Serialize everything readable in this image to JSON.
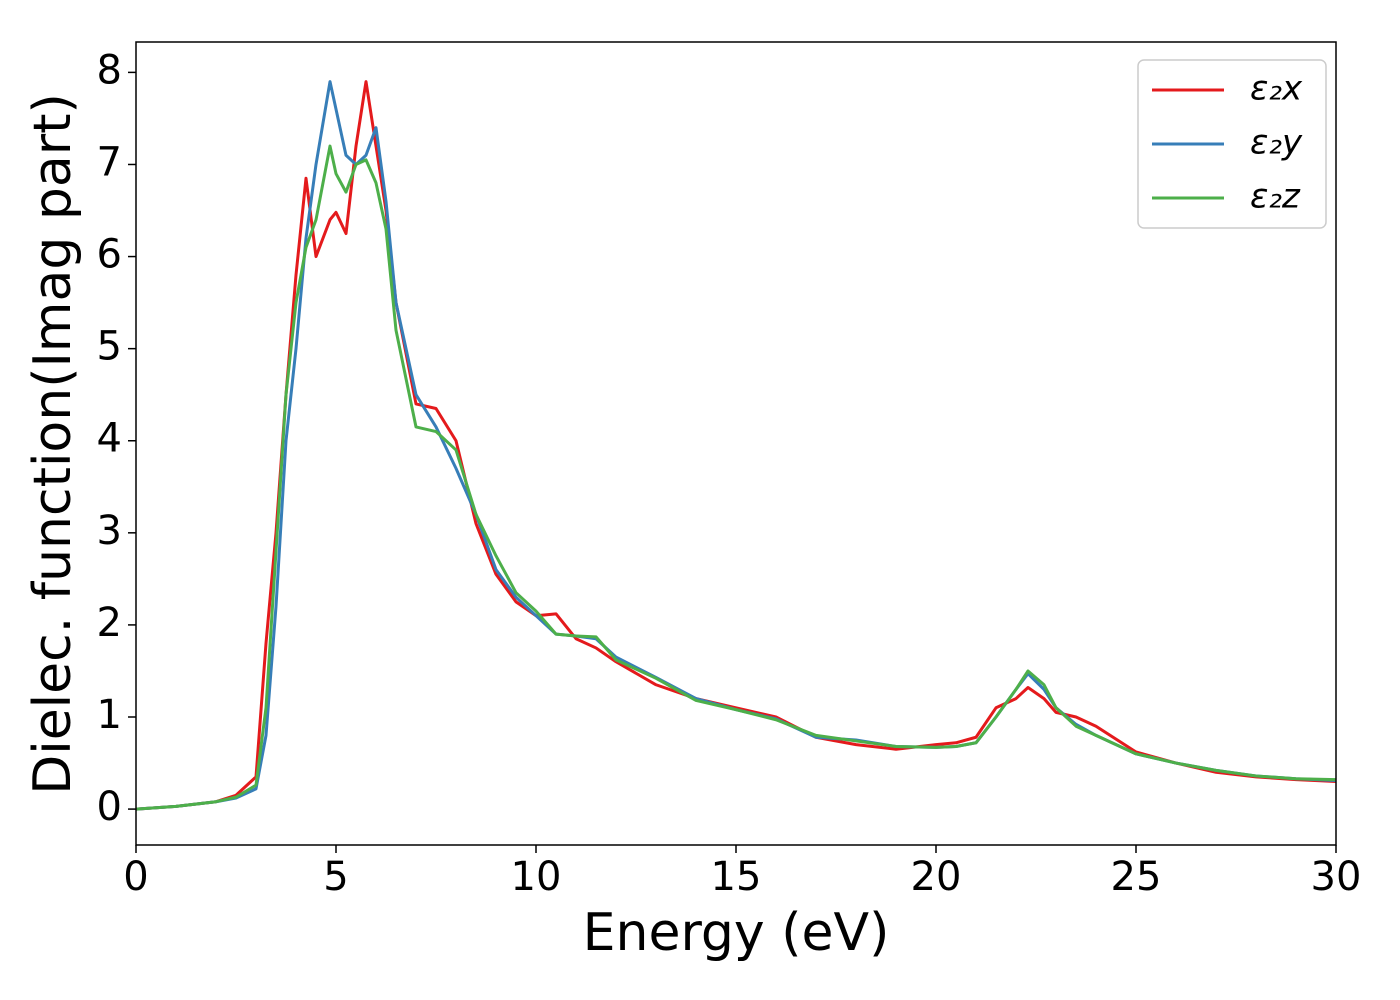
{
  "chart_data": {
    "type": "line",
    "x_label": "Energy (eV)",
    "y_label": "Dielec. function(Imag part)",
    "x": [
      0,
      1,
      2,
      2.5,
      3,
      3.25,
      3.5,
      3.75,
      4,
      4.25,
      4.5,
      4.85,
      5,
      5.25,
      5.5,
      5.75,
      6,
      6.25,
      6.5,
      7,
      7.5,
      8,
      8.5,
      9,
      9.5,
      10,
      10.5,
      11,
      11.5,
      12,
      13,
      14,
      15,
      16,
      17,
      18,
      19,
      20,
      20.5,
      21,
      21.5,
      22,
      22.3,
      22.7,
      23,
      23.5,
      24,
      25,
      26,
      27,
      28,
      29,
      30
    ],
    "series": [
      {
        "name": "ε₂x",
        "color": "#e41a1c",
        "values": [
          0,
          0.03,
          0.08,
          0.15,
          0.35,
          1.8,
          3.0,
          4.5,
          5.8,
          6.85,
          6.0,
          6.4,
          6.48,
          6.25,
          7.2,
          7.9,
          7.2,
          6.5,
          5.5,
          4.4,
          4.35,
          4.0,
          3.1,
          2.55,
          2.25,
          2.1,
          2.12,
          1.85,
          1.75,
          1.6,
          1.35,
          1.2,
          1.1,
          1.0,
          0.78,
          0.7,
          0.65,
          0.7,
          0.72,
          0.78,
          1.1,
          1.2,
          1.32,
          1.2,
          1.05,
          1.0,
          0.9,
          0.62,
          0.5,
          0.4,
          0.35,
          0.32,
          0.3
        ]
      },
      {
        "name": "ε₂y",
        "color": "#377eb8",
        "values": [
          0,
          0.03,
          0.08,
          0.12,
          0.22,
          0.8,
          2.2,
          4.0,
          5.0,
          6.2,
          7.0,
          7.9,
          7.6,
          7.1,
          7.0,
          7.1,
          7.4,
          6.6,
          5.5,
          4.5,
          4.15,
          3.7,
          3.2,
          2.6,
          2.3,
          2.1,
          1.9,
          1.88,
          1.85,
          1.65,
          1.43,
          1.2,
          1.08,
          0.98,
          0.78,
          0.75,
          0.68,
          0.67,
          0.68,
          0.72,
          1.0,
          1.3,
          1.47,
          1.3,
          1.1,
          0.92,
          0.8,
          0.6,
          0.5,
          0.42,
          0.36,
          0.33,
          0.31
        ]
      },
      {
        "name": "ε₂z",
        "color": "#4daf4a",
        "values": [
          0,
          0.03,
          0.08,
          0.13,
          0.26,
          1.1,
          2.8,
          4.5,
          5.5,
          6.1,
          6.4,
          7.2,
          6.9,
          6.7,
          7.0,
          7.05,
          6.8,
          6.3,
          5.2,
          4.15,
          4.1,
          3.9,
          3.2,
          2.75,
          2.35,
          2.15,
          1.9,
          1.88,
          1.87,
          1.62,
          1.42,
          1.18,
          1.08,
          0.97,
          0.8,
          0.74,
          0.68,
          0.67,
          0.68,
          0.72,
          1.0,
          1.3,
          1.5,
          1.35,
          1.1,
          0.9,
          0.8,
          0.6,
          0.5,
          0.42,
          0.36,
          0.33,
          0.32
        ]
      }
    ],
    "xlim": [
      0,
      30
    ],
    "xticks": [
      0,
      5,
      10,
      15,
      20,
      25,
      30
    ],
    "ylim": [
      -0.39,
      8.33
    ],
    "yticks": [
      0,
      1,
      2,
      3,
      4,
      5,
      6,
      7,
      8
    ],
    "legend": "upper right"
  }
}
